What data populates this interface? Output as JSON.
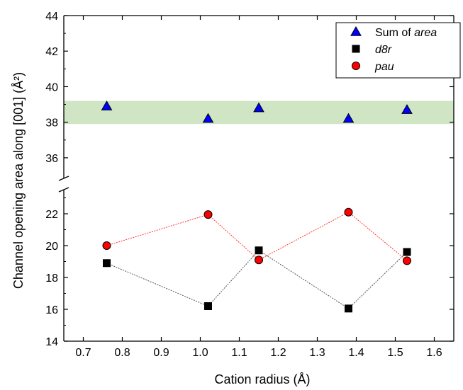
{
  "chart_data": {
    "type": "scatter",
    "xlabel": "Cation radius (Å)",
    "ylabel": "Channel opening area along [001] (Å²)",
    "xlim": [
      0.65,
      1.65
    ],
    "x_ticks": [
      "0.7",
      "0.8",
      "0.9",
      "1.0",
      "1.1",
      "1.2",
      "1.3",
      "1.4",
      "1.5",
      "1.6"
    ],
    "y_axis_break": true,
    "upper_ylim": [
      35,
      44
    ],
    "lower_ylim": [
      14,
      24
    ],
    "upper_y_ticks": [
      "36",
      "38",
      "40",
      "42",
      "44"
    ],
    "lower_y_ticks": [
      "14",
      "16",
      "18",
      "20",
      "22"
    ],
    "band": {
      "y_from": 37.9,
      "y_to": 39.2,
      "color": "#cfe5c3"
    },
    "legend_position": "top-right",
    "series": [
      {
        "name": "Sum of area",
        "legend_prefix": "Sum of ",
        "legend_emph": "area",
        "marker": "triangle",
        "color": "#0000ff",
        "connected": false,
        "x": [
          0.76,
          1.02,
          1.15,
          1.38,
          1.53
        ],
        "y": [
          38.9,
          38.2,
          38.8,
          38.2,
          38.7
        ]
      },
      {
        "name": "d8r",
        "legend_prefix": "",
        "legend_emph": "d8r",
        "marker": "square",
        "color": "#000000",
        "line_color": "#555555",
        "connected": true,
        "x": [
          0.76,
          1.02,
          1.15,
          1.38,
          1.53
        ],
        "y": [
          18.9,
          16.2,
          19.7,
          16.05,
          19.6
        ]
      },
      {
        "name": "pau",
        "legend_prefix": "",
        "legend_emph": "pau",
        "marker": "circle",
        "color": "#ff0000",
        "line_color": "#ff3333",
        "connected": true,
        "x": [
          0.76,
          1.02,
          1.15,
          1.38,
          1.53
        ],
        "y": [
          20.0,
          21.95,
          19.1,
          22.1,
          19.05
        ]
      }
    ]
  }
}
